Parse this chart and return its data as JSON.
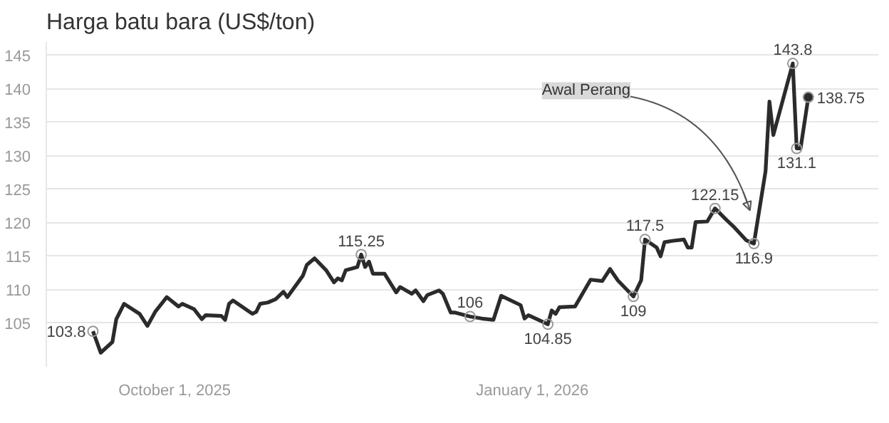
{
  "chart_data": {
    "type": "line",
    "title": "Harga batu bara (US$/ton)",
    "x": [
      "2025-09-10",
      "2025-09-12",
      "2025-09-15",
      "2025-09-16",
      "2025-09-18",
      "2025-09-22",
      "2025-09-24",
      "2025-09-26",
      "2025-09-29",
      "2025-10-02",
      "2025-10-03",
      "2025-10-06",
      "2025-10-08",
      "2025-10-09",
      "2025-10-13",
      "2025-10-14",
      "2025-10-15",
      "2025-10-16",
      "2025-10-21",
      "2025-10-22",
      "2025-10-23",
      "2025-10-25",
      "2025-10-27",
      "2025-10-29",
      "2025-10-30",
      "2025-11-03",
      "2025-11-04",
      "2025-11-06",
      "2025-11-09",
      "2025-11-11",
      "2025-11-12",
      "2025-11-13",
      "2025-11-14",
      "2025-11-17",
      "2025-11-18",
      "2025-11-19",
      "2025-11-20",
      "2025-11-21",
      "2025-11-24",
      "2025-11-27",
      "2025-11-28",
      "2025-12-01",
      "2025-12-02",
      "2025-12-04",
      "2025-12-05",
      "2025-12-08",
      "2025-12-09",
      "2025-12-11",
      "2025-12-12",
      "2025-12-16",
      "2025-12-19",
      "2025-12-22",
      "2025-12-24",
      "2025-12-29",
      "2025-12-30",
      "2025-12-31",
      "2026-01-05",
      "2026-01-06",
      "2026-01-07",
      "2026-01-08",
      "2026-01-12",
      "2026-01-16",
      "2026-01-19",
      "2026-01-21",
      "2026-01-23",
      "2026-01-25",
      "2026-01-27",
      "2026-01-29",
      "2026-01-30",
      "2026-02-02",
      "2026-02-03",
      "2026-02-04",
      "2026-02-06",
      "2026-02-09",
      "2026-02-10",
      "2026-02-11",
      "2026-02-12",
      "2026-02-15",
      "2026-02-17",
      "2026-02-20",
      "2026-02-22",
      "2026-02-25",
      "2026-02-27",
      "2026-03-02",
      "2026-03-03",
      "2026-03-04",
      "2026-03-09",
      "2026-03-10",
      "2026-03-11",
      "2026-03-13"
    ],
    "series": [
      {
        "color": "#2b2b2b",
        "values": [
          103.8,
          100.6,
          102.2,
          105.6,
          107.9,
          106.4,
          104.6,
          106.7,
          108.9,
          107.5,
          107.9,
          107.1,
          105.6,
          106.2,
          106.1,
          105.5,
          107.9,
          108.4,
          106.4,
          106.7,
          107.9,
          108.1,
          108.6,
          109.7,
          108.9,
          112.1,
          113.7,
          114.7,
          112.9,
          111.1,
          111.7,
          111.4,
          112.9,
          113.4,
          115.25,
          113.4,
          114.2,
          112.4,
          112.4,
          109.6,
          110.4,
          109.4,
          109.9,
          108.3,
          109.2,
          109.9,
          109.4,
          106.6,
          106.6,
          106,
          105.7,
          105.5,
          109.1,
          107.7,
          105.7,
          106.2,
          104.85,
          106.9,
          106.4,
          107.4,
          107.5,
          111.5,
          111.3,
          113.1,
          111.4,
          110.2,
          109,
          111.4,
          117.5,
          116.3,
          115,
          117.1,
          117.3,
          117.5,
          116.3,
          116.3,
          120.1,
          120.2,
          122.15,
          120.4,
          119.3,
          117.4,
          116.9,
          127.7,
          138.1,
          133.1,
          143.8,
          131.1,
          131.1,
          138.75
        ],
        "value_labels": [
          "103.8",
          null,
          null,
          null,
          null,
          null,
          null,
          null,
          null,
          null,
          null,
          null,
          null,
          null,
          null,
          null,
          null,
          null,
          null,
          null,
          null,
          null,
          null,
          null,
          null,
          null,
          null,
          null,
          null,
          null,
          null,
          null,
          null,
          null,
          "115.25",
          null,
          null,
          null,
          null,
          null,
          null,
          null,
          null,
          null,
          null,
          null,
          null,
          null,
          null,
          "106",
          null,
          null,
          null,
          null,
          null,
          null,
          "104.85",
          null,
          null,
          null,
          null,
          null,
          null,
          null,
          null,
          null,
          "109",
          null,
          "117.5",
          null,
          null,
          null,
          null,
          null,
          null,
          null,
          null,
          null,
          "122.15",
          null,
          null,
          null,
          "116.9",
          null,
          null,
          null,
          "143.8",
          "131.1",
          null,
          "138.75"
        ]
      }
    ],
    "xlim": [
      "2025-08-29",
      "2026-03-31"
    ],
    "xticks": [
      {
        "value": "2025-10-01",
        "label": "October 1, 2025"
      },
      {
        "value": "2026-01-01",
        "label": "January 1, 2026"
      }
    ],
    "ylim": [
      98.5,
      147
    ],
    "yticks": [
      105,
      110,
      115,
      120,
      125,
      130,
      135,
      140,
      145
    ],
    "grid": "y",
    "annotations": [
      {
        "text": "Awal Perang",
        "x": "2026-02-26",
        "y": 121
      }
    ]
  }
}
